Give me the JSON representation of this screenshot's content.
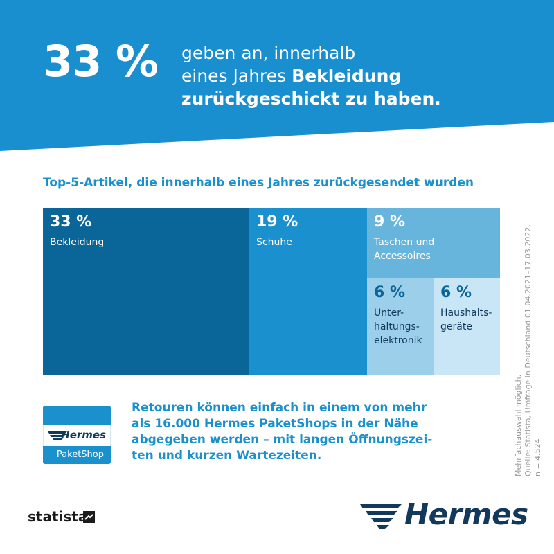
{
  "hero": {
    "big_value": "33 %",
    "line1": "geben an, innerhalb",
    "line2_prefix": "eines Jahres ",
    "line2_bold": "Bekleidung",
    "line3_bold": "zurückgeschickt zu haben."
  },
  "colors": {
    "hero_blue": "#1a8fcf",
    "tile_1": "#0a6598",
    "tile_2": "#1a90cf",
    "tile_3": "#67b5dc",
    "tile_4": "#9ccfe9",
    "tile_5": "#c8e6f5",
    "text_blue": "#1a90cc",
    "hermes_navy": "#12395c"
  },
  "chart_data": {
    "type": "treemap",
    "title": "Top-5-Artikel, die innerhalb eines Jahres zurückgesendet wurden",
    "unit": "%",
    "items": [
      {
        "label": "Bekleidung",
        "value": 33,
        "value_label": "33 %"
      },
      {
        "label": "Schuhe",
        "value": 19,
        "value_label": "19 %"
      },
      {
        "label": "Taschen und Accessoires",
        "value": 9,
        "value_label": "9 %"
      },
      {
        "label": "Unter-haltungs-elektronik",
        "value": 6,
        "value_label": "6 %"
      },
      {
        "label": "Haushalts-geräte",
        "value": 6,
        "value_label": "6 %"
      }
    ]
  },
  "tile_text": {
    "t1_lines": [
      "Bekleidung"
    ],
    "t2_lines": [
      "Schuhe"
    ],
    "t3_lines": [
      "Taschen und",
      "Accessoires"
    ],
    "t4_lines": [
      "Unter-",
      "haltungs-",
      "elektronik"
    ],
    "t5_lines": [
      "Haushalts-",
      "geräte"
    ]
  },
  "side_note": {
    "line1": "Mehrfachauswahl möglich.",
    "line2": "Quelle: Statista, Umfrage in Deutschland 01.04.2021–17.03.2022,",
    "line3": "n = 4.524"
  },
  "paketshop": {
    "brand": "Hermes",
    "label": "PaketShop"
  },
  "retour_text": {
    "line1": "Retouren können einfach in einem von mehr",
    "line2": "als 16.000 Hermes PaketShops in der Nähe",
    "line3": "abgegeben werden – mit langen Öffnungszei-",
    "line4": "ten und kurzen Wartezeiten."
  },
  "footer": {
    "statista": "statista",
    "hermes": "Hermes"
  }
}
